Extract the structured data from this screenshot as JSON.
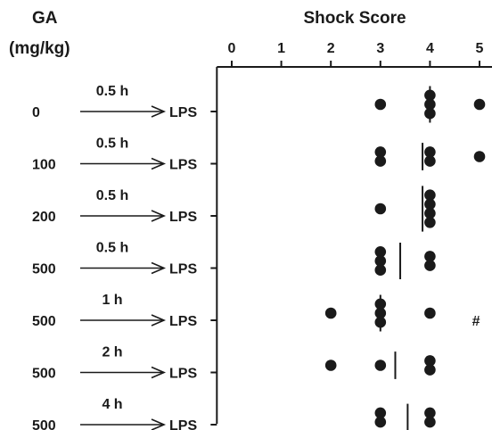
{
  "chart_data": {
    "type": "scatter",
    "title": "Shock Score",
    "group_header": [
      "GA",
      "(mg/kg)"
    ],
    "xlim": [
      -0.3,
      5.3
    ],
    "x_ticks": [
      "0",
      "1",
      "2",
      "3",
      "4",
      "5"
    ],
    "treatment": "LPS",
    "rows": [
      {
        "dose": "0",
        "interval": "0.5 h",
        "scores": [
          3,
          4,
          4,
          4,
          5
        ],
        "mean": 4.0,
        "note": ""
      },
      {
        "dose": "100",
        "interval": "0.5 h",
        "scores": [
          3,
          3,
          4,
          4,
          5
        ],
        "mean": 3.85,
        "note": ""
      },
      {
        "dose": "200",
        "interval": "0.5 h",
        "scores": [
          3,
          4,
          4,
          4,
          4
        ],
        "mean": 3.85,
        "note": ""
      },
      {
        "dose": "500",
        "interval": "0.5 h",
        "scores": [
          3,
          3,
          3,
          4,
          4
        ],
        "mean": 3.4,
        "note": ""
      },
      {
        "dose": "500",
        "interval": "1 h",
        "scores": [
          2,
          3,
          3,
          3,
          4
        ],
        "mean": 3.0,
        "note": "#"
      },
      {
        "dose": "500",
        "interval": "2 h",
        "scores": [
          2,
          3,
          4,
          4
        ],
        "mean": 3.3,
        "note": ""
      },
      {
        "dose": "500",
        "interval": "4 h",
        "scores": [
          3,
          3,
          4,
          4
        ],
        "mean": 3.55,
        "note": ""
      }
    ]
  }
}
